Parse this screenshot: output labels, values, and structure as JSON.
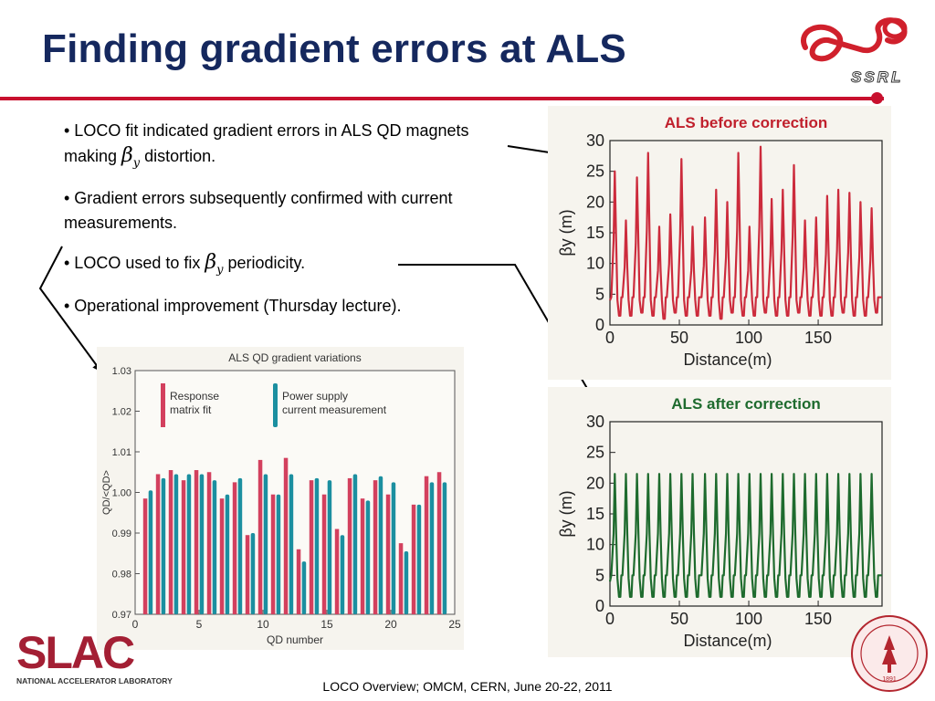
{
  "slide": {
    "title": "Finding gradient errors at ALS",
    "footer": "LOCO Overview; OMCM, CERN, June 20-22, 2011"
  },
  "bullets": {
    "b1": {
      "prefix": "• LOCO fit indicated gradient errors in ALS QD magnets making",
      "suffix": "distortion."
    },
    "b2": "• Gradient errors subsequently confirmed with current measurements.",
    "b3": {
      "prefix": "• LOCO used to fix",
      "suffix": "periodicity."
    },
    "b4": "• Operational improvement (Thursday lecture)."
  },
  "beta_symbol": {
    "base": "β",
    "sub": "y"
  },
  "logos": {
    "ssrl_text": "SSRL",
    "slac_text": "SLAC",
    "slac_subtitle": "NATIONAL ACCELERATOR LABORATORY",
    "seal_year": "1891"
  },
  "colors": {
    "title": "#15285e",
    "accent": "#c8102e",
    "before_line": "#cc2b3c",
    "after_line": "#1e6b2e",
    "bar_fit": "#d3405e",
    "bar_power": "#1b8fa0"
  },
  "chart_data": [
    {
      "id": "before",
      "type": "line",
      "title": "ALS before correction",
      "xlabel": "Distance(m)",
      "ylabel": "βy (m)",
      "xlim": [
        0,
        196
      ],
      "ylim": [
        0,
        30
      ],
      "xticks": [
        0,
        50,
        100,
        150
      ],
      "yticks": [
        0,
        5,
        10,
        15,
        20,
        25,
        30
      ],
      "peak_x": [
        4,
        12,
        20,
        28,
        36,
        44,
        52,
        60,
        69,
        77,
        85,
        93,
        101,
        109,
        117,
        125,
        133,
        141,
        149,
        157,
        165,
        173,
        181,
        189
      ],
      "peaks": [
        25,
        17,
        24,
        28,
        16,
        18,
        27,
        16,
        17.5,
        22,
        20,
        28,
        16,
        29,
        20.5,
        22,
        26,
        17,
        17.5,
        21,
        22,
        21.5,
        20,
        19
      ],
      "dips": [
        1.5,
        1.5,
        2,
        1.5,
        1,
        2,
        1.5,
        1.5,
        1.5,
        1,
        2,
        1.5,
        1.5,
        2,
        1.5,
        1.5,
        2,
        1.5,
        1.5,
        1.5,
        2,
        1.5,
        1.5,
        2
      ],
      "baseline_level": 4.5,
      "x_end": 196
    },
    {
      "id": "after",
      "type": "line",
      "title": "ALS after correction",
      "xlabel": "Distance(m)",
      "ylabel": "βy (m)",
      "xlim": [
        0,
        196
      ],
      "ylim": [
        0,
        30
      ],
      "xticks": [
        0,
        50,
        100,
        150
      ],
      "yticks": [
        0,
        5,
        10,
        15,
        20,
        25,
        30
      ],
      "peak_x": [
        4,
        12,
        20,
        28,
        36,
        44,
        52,
        60,
        69,
        77,
        85,
        93,
        101,
        109,
        117,
        125,
        133,
        141,
        149,
        157,
        165,
        173,
        181,
        189
      ],
      "peaks": [
        21.5,
        21.5,
        21.5,
        21.5,
        21.5,
        21.5,
        21.5,
        21.5,
        21.5,
        21.5,
        21.5,
        21.5,
        21.5,
        21.5,
        21.5,
        21.5,
        21.5,
        21.5,
        21.5,
        21.5,
        21.5,
        21.5,
        21.5,
        21.5
      ],
      "dips": [
        1.5,
        1.5,
        1.5,
        1.5,
        1.5,
        1.5,
        1.5,
        1.5,
        1.5,
        1.5,
        1.5,
        1.5,
        1.5,
        1.5,
        1.5,
        1.5,
        1.5,
        1.5,
        1.5,
        1.5,
        1.5,
        1.5,
        1.5,
        1.5
      ],
      "baseline_level": 5,
      "x_end": 196
    },
    {
      "id": "qd",
      "type": "bar",
      "title": "ALS QD gradient variations",
      "xlabel": "QD number",
      "ylabel": "QD/<QD>",
      "xlim": [
        0,
        25
      ],
      "ylim": [
        0.97,
        1.03
      ],
      "xticks": [
        0,
        5,
        10,
        15,
        20,
        25
      ],
      "yticks": [
        0.97,
        0.98,
        0.99,
        1.0,
        1.01,
        1.02,
        1.03
      ],
      "ytick_labels": [
        "0.97",
        "0.98",
        "0.99",
        "1.00",
        "1.01",
        "1.02",
        "1.03"
      ],
      "bar_base": 0.97,
      "categories": [
        1,
        2,
        3,
        4,
        5,
        6,
        7,
        8,
        9,
        10,
        11,
        12,
        13,
        14,
        15,
        16,
        17,
        18,
        19,
        20,
        21,
        22,
        23,
        24
      ],
      "series": [
        {
          "name": "Response matrix fit",
          "values": [
            0.9985,
            1.0045,
            1.0055,
            1.003,
            1.0055,
            1.005,
            0.9985,
            1.0025,
            0.9895,
            1.008,
            0.9995,
            1.0085,
            0.986,
            1.003,
            0.9995,
            0.991,
            1.0035,
            0.9985,
            1.003,
            0.9995,
            0.9875,
            0.997,
            1.004,
            1.005
          ]
        },
        {
          "name": "Power supply current measurement",
          "values": [
            1.0005,
            1.0035,
            1.0045,
            1.0045,
            1.0045,
            1.003,
            0.9995,
            1.0035,
            0.99,
            1.0045,
            0.9995,
            1.0045,
            0.983,
            1.0035,
            1.003,
            0.9895,
            1.0045,
            0.998,
            1.004,
            1.0025,
            0.9855,
            0.997,
            1.0025,
            1.0025
          ]
        }
      ],
      "legend": [
        "Response",
        "matrix fit",
        "Power supply",
        "current measurement"
      ]
    }
  ]
}
